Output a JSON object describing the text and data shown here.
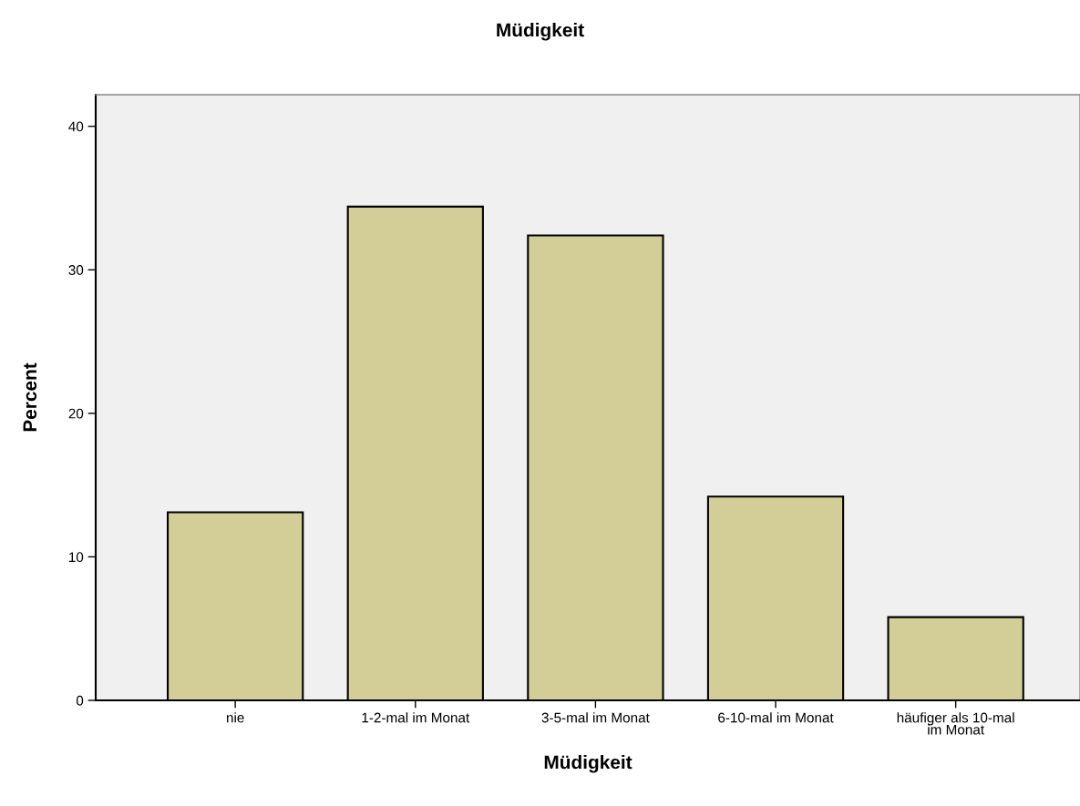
{
  "chart_data": {
    "type": "bar",
    "title": "Müdigkeit",
    "xlabel": "Müdigkeit",
    "ylabel": "Percent",
    "categories": [
      "nie",
      "1-2-mal im Monat",
      "3-5-mal im Monat",
      "6-10-mal im Monat",
      "häufiger als 10-mal\nim Monat"
    ],
    "values": [
      13.1,
      34.4,
      32.4,
      14.2,
      5.8
    ],
    "color": "#d3ce98",
    "ylim": [
      0,
      42.2
    ],
    "yticks": [
      0,
      10,
      20,
      30,
      40
    ],
    "grid": false
  }
}
